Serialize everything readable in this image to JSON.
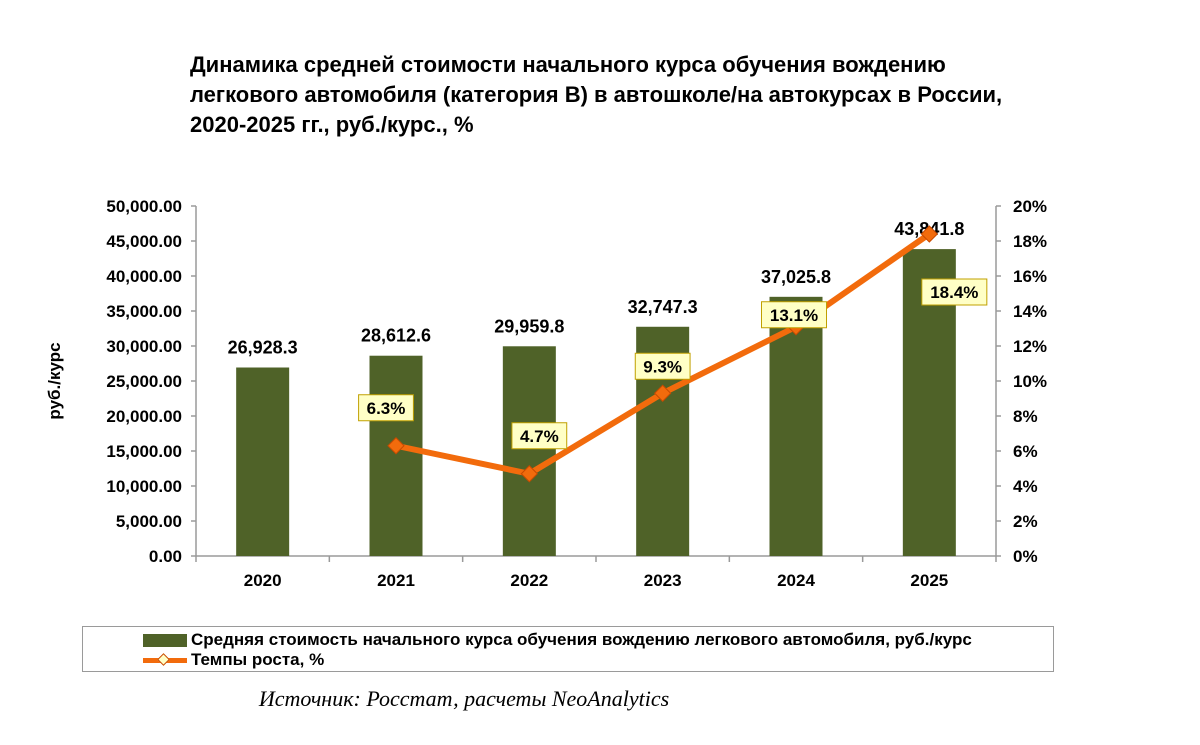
{
  "title_lines": [
    "Динамика средней стоимости начального курса обучения вождению",
    "легкового автомобиля (категория В) в автошколе/на автокурсах в России,",
    "2020-2025 гг., руб./курс., %"
  ],
  "source": "Источник: Росстат, расчеты NeoAnalytics",
  "colors": {
    "bar": "#4f6228",
    "line": "#f26b0c",
    "label_bg": "#ffffc6",
    "label_border": "#c0a000"
  },
  "chart_data": {
    "type": "bar",
    "title": "Динамика средней стоимости начального курса обучения вождению легкового автомобиля (категория В) в автошколе/на автокурсах в России, 2020-2025 гг., руб./курс., %",
    "categories": [
      "2020",
      "2021",
      "2022",
      "2023",
      "2024",
      "2025"
    ],
    "ylabel": "руб./курс",
    "ylim": [
      0,
      50000
    ],
    "y2lim": [
      0,
      20
    ],
    "y_ticks": [
      "0.00",
      "5,000.00",
      "10,000.00",
      "15,000.00",
      "20,000.00",
      "25,000.00",
      "30,000.00",
      "35,000.00",
      "40,000.00",
      "45,000.00",
      "50,000.00"
    ],
    "y2_ticks": [
      "0%",
      "2%",
      "4%",
      "6%",
      "8%",
      "10%",
      "12%",
      "14%",
      "16%",
      "18%",
      "20%"
    ],
    "grid": false,
    "legend_position": "bottom",
    "series": [
      {
        "name": "Средняя стоимость начального курса обучения вождению легкового автомобиля, руб./курс",
        "type": "bar",
        "axis": "left",
        "values": [
          26928.3,
          28612.6,
          29959.8,
          32747.3,
          37025.8,
          43841.8
        ],
        "labels": [
          "26,928.3",
          "28,612.6",
          "29,959.8",
          "32,747.3",
          "37,025.8",
          "43,841.8"
        ]
      },
      {
        "name": "Темпы роста, %",
        "type": "line",
        "axis": "right",
        "values": [
          null,
          6.3,
          4.7,
          9.3,
          13.1,
          18.4
        ],
        "labels": [
          "",
          "6.3%",
          "4.7%",
          "9.3%",
          "13.1%",
          "18.4%"
        ]
      }
    ]
  }
}
